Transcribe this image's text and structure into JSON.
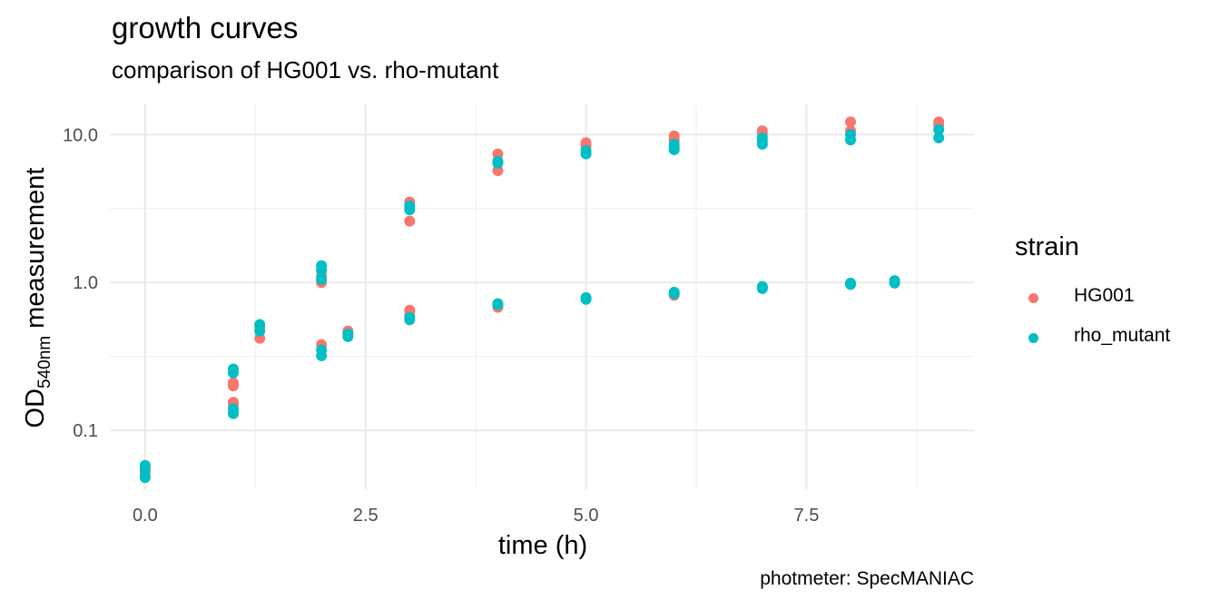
{
  "chart_data": {
    "type": "scatter",
    "title": "growth curves",
    "subtitle": "comparison of HG001 vs. rho-mutant",
    "caption": "photmeter: SpecMANIAC",
    "xlabel": "time (h)",
    "ylabel_main": "OD",
    "ylabel_sub": "540nm",
    "ylabel_rest": " measurement",
    "xlim": [
      -0.4,
      9.4
    ],
    "ylim": [
      0.04,
      16
    ],
    "y_scale": "log10",
    "x_ticks": [
      0.0,
      2.5,
      5.0,
      7.5
    ],
    "x_tick_labels": [
      "0.0",
      "2.5",
      "5.0",
      "7.5"
    ],
    "y_ticks": [
      0.1,
      1.0,
      10.0
    ],
    "y_tick_labels": [
      "0.1",
      "1.0",
      "10.0"
    ],
    "grid": true,
    "legend": {
      "title": "strain",
      "position": "right"
    },
    "series": [
      {
        "name": "HG001",
        "color": "#F8766D",
        "points": [
          [
            0,
            0.056
          ],
          [
            0,
            0.052
          ],
          [
            0,
            0.05
          ],
          [
            1,
            0.21
          ],
          [
            1,
            0.2
          ],
          [
            1,
            0.155
          ],
          [
            1,
            0.15
          ],
          [
            1.3,
            0.42
          ],
          [
            1.3,
            0.5
          ],
          [
            2,
            0.38
          ],
          [
            2,
            1.0
          ],
          [
            2,
            1.1
          ],
          [
            2,
            1.2
          ],
          [
            2.3,
            0.47
          ],
          [
            2.3,
            0.46
          ],
          [
            3,
            3.5
          ],
          [
            3,
            2.6
          ],
          [
            3,
            0.65
          ],
          [
            3,
            0.6
          ],
          [
            4,
            7.4
          ],
          [
            4,
            5.7
          ],
          [
            4,
            0.68
          ],
          [
            4,
            0.7
          ],
          [
            5,
            8.8
          ],
          [
            5,
            8.4
          ],
          [
            5,
            0.78
          ],
          [
            6,
            9.8
          ],
          [
            6,
            9.2
          ],
          [
            6,
            0.82
          ],
          [
            6,
            0.84
          ],
          [
            7,
            10.6
          ],
          [
            7,
            10.2
          ],
          [
            7,
            0.93
          ],
          [
            8,
            12.2
          ],
          [
            8,
            10.6
          ],
          [
            8,
            0.98
          ],
          [
            8.5,
            1.0
          ],
          [
            9,
            12.2
          ],
          [
            9,
            11.6
          ]
        ]
      },
      {
        "name": "rho_mutant",
        "color": "#00BFC4",
        "points": [
          [
            0,
            0.058
          ],
          [
            0,
            0.054
          ],
          [
            0,
            0.048
          ],
          [
            1,
            0.26
          ],
          [
            1,
            0.245
          ],
          [
            1,
            0.14
          ],
          [
            1,
            0.13
          ],
          [
            1.3,
            0.52
          ],
          [
            1.3,
            0.47
          ],
          [
            2,
            1.3
          ],
          [
            2,
            1.2
          ],
          [
            2,
            1.05
          ],
          [
            2,
            0.35
          ],
          [
            2,
            0.32
          ],
          [
            2.3,
            0.45
          ],
          [
            2.3,
            0.43
          ],
          [
            3,
            3.3
          ],
          [
            3,
            3.1
          ],
          [
            3,
            0.58
          ],
          [
            3,
            0.56
          ],
          [
            4,
            6.6
          ],
          [
            4,
            6.4
          ],
          [
            4,
            0.72
          ],
          [
            4,
            0.71
          ],
          [
            5,
            7.8
          ],
          [
            5,
            7.4
          ],
          [
            5,
            0.79
          ],
          [
            5,
            0.77
          ],
          [
            6,
            8.6
          ],
          [
            6,
            8.2
          ],
          [
            6,
            7.9
          ],
          [
            6,
            0.86
          ],
          [
            6,
            0.84
          ],
          [
            7,
            9.5
          ],
          [
            7,
            9.0
          ],
          [
            7,
            8.6
          ],
          [
            7,
            0.94
          ],
          [
            7,
            0.91
          ],
          [
            8,
            10.0
          ],
          [
            8,
            9.2
          ],
          [
            8,
            0.99
          ],
          [
            8,
            0.97
          ],
          [
            8.5,
            1.03
          ],
          [
            8.5,
            0.99
          ],
          [
            9,
            10.8
          ],
          [
            9,
            9.5
          ]
        ]
      }
    ]
  }
}
